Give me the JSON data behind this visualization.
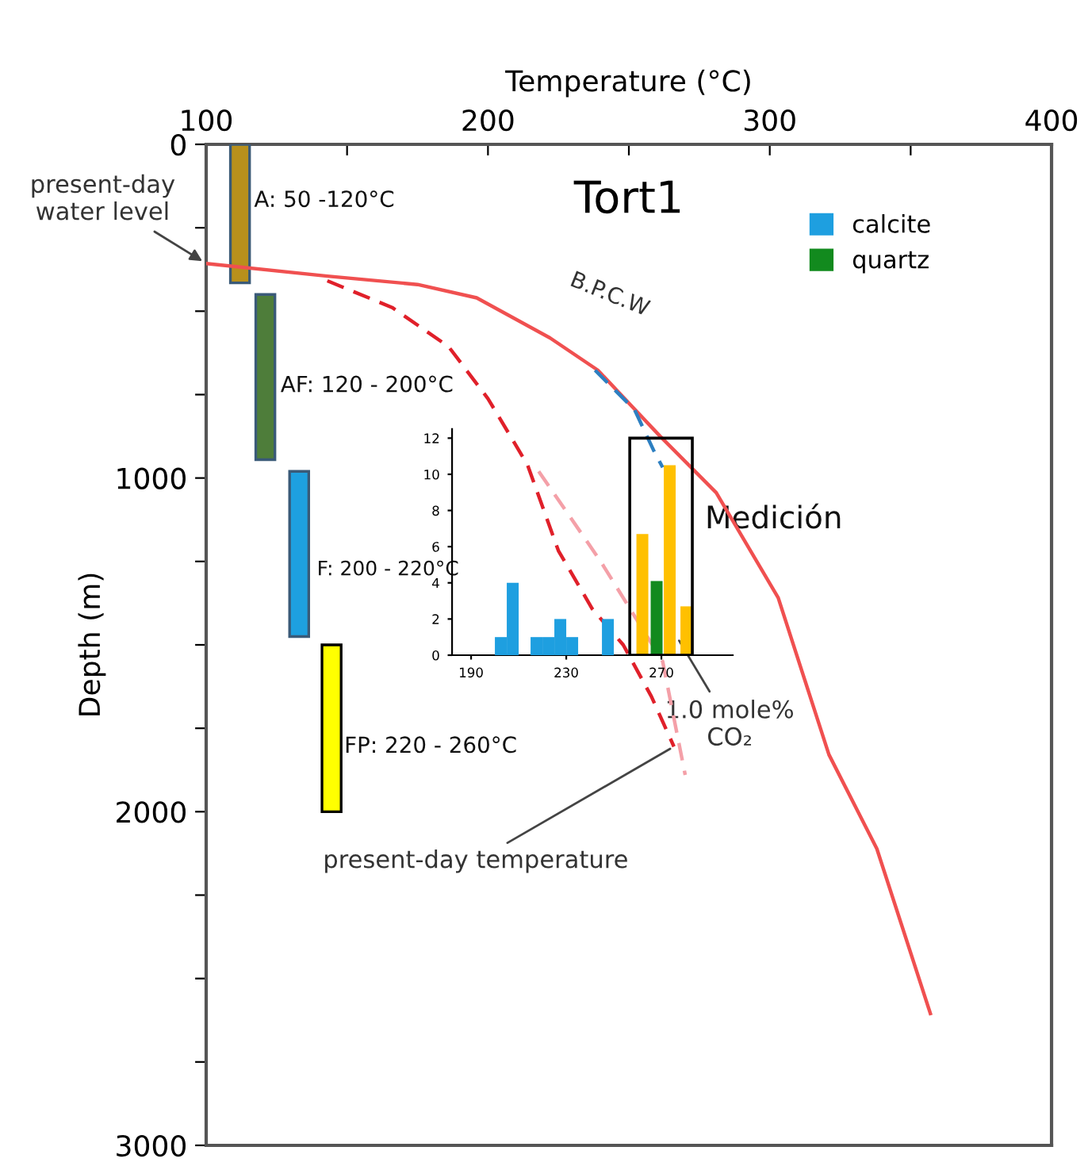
{
  "chart_data": [
    {
      "type": "line",
      "title": "Tort1",
      "xlabel": "Temperature (°C)",
      "ylabel": "Depth (m)",
      "xlim": [
        100,
        400
      ],
      "xticks": [
        100,
        {
          "value": 150,
          "label": null
        },
        200,
        {
          "value": 250,
          "label": null
        },
        300,
        {
          "value": 350,
          "label": null
        },
        400
      ],
      "ylim": [
        3000,
        0
      ],
      "yticks": [
        0,
        {
          "value": 250,
          "label": null
        },
        {
          "value": 500,
          "label": null
        },
        {
          "value": 750,
          "label": null
        },
        1000,
        {
          "value": 1250,
          "label": null
        },
        {
          "value": 1500,
          "label": null
        },
        {
          "value": 1750,
          "label": null
        },
        2000,
        {
          "value": 2250,
          "label": null
        },
        {
          "value": 2500,
          "label": null
        },
        {
          "value": 2750,
          "label": null
        },
        3000
      ],
      "grid": false,
      "legend": false,
      "series": [
        {
          "type": "bar",
          "x": [
            112,
            121,
            133,
            144.5
          ],
          "base": [
            0,
            450,
            980,
            1500
          ],
          "values": [
            415,
            495,
            495,
            500
          ],
          "colors": [
            "#b8901c",
            "#4e7d3a",
            "#1ea0e0",
            "#ffff00"
          ]
        },
        {
          "name": "B.P.C.W",
          "color": "#f05050",
          "line_style": "solid",
          "x": [
            100,
            143,
            175,
            196,
            222,
            239,
            261,
            281,
            303,
            321,
            338,
            357
          ],
          "values": [
            357,
            395,
            420,
            460,
            580,
            677,
            874,
            1044,
            1359,
            1829,
            2111,
            2605
          ]
        },
        {
          "color": "#e0202a",
          "line_style": "dashed",
          "x": [
            143,
            166,
            186,
            200,
            214,
            225,
            237,
            248,
            258,
            266
          ],
          "values": [
            409,
            489,
            606,
            762,
            960,
            1218,
            1392,
            1500,
            1655,
            1805
          ]
        },
        {
          "color": "#f4a0a8",
          "line_style": "dashed",
          "x": [
            218,
            240,
            262,
            270
          ],
          "values": [
            980,
            1250,
            1550,
            1890
          ]
        },
        {
          "color": "#2d7fc1",
          "line_style": "dashed",
          "x": [
            238,
            252,
            259,
            262
          ],
          "values": [
            677,
            795,
            921,
            968
          ]
        }
      ],
      "annotations": [
        {
          "text": "present-day\nwater level",
          "x": 100,
          "y": 357
        },
        {
          "text": "A: 50 -120°C",
          "x": 117,
          "y": 169
        },
        {
          "text": "AF: 120 - 200°C",
          "x": 126.4,
          "y": 724
        },
        "F: 200 - 220°C",
        {
          "text": "FP: 220 - 260°C",
          "x": 149,
          "y": 1805
        },
        "1.0 mole%\nCO₂",
        {
          "text": "present-day temperature",
          "x": 266,
          "y": 1805
        },
        "Medición"
      ]
    },
    {
      "type": "bar",
      "xlim": [
        182,
        300
      ],
      "xticks": [
        190,
        230,
        270
      ],
      "ylim": [
        0,
        12.5
      ],
      "yticks": [
        0,
        2,
        4,
        6,
        8,
        10,
        12
      ],
      "legend": "top right",
      "grid": false,
      "series": [
        {
          "name": "calcite",
          "color": "#1e9fe0",
          "x": [
            202.5,
            207.5,
            217.5,
            222.5,
            227.5,
            232.5,
            247.5
          ],
          "values": [
            1,
            4,
            1,
            1,
            2,
            1,
            2
          ]
        },
        {
          "name": "quartz",
          "color": "#128a1e",
          "x": [
            268
          ],
          "values": [
            4.1
          ]
        },
        {
          "color": "#ffc000",
          "x": [
            262,
            273.5,
            280.5
          ],
          "values": [
            6.7,
            10.5,
            2.7
          ]
        }
      ]
    }
  ]
}
